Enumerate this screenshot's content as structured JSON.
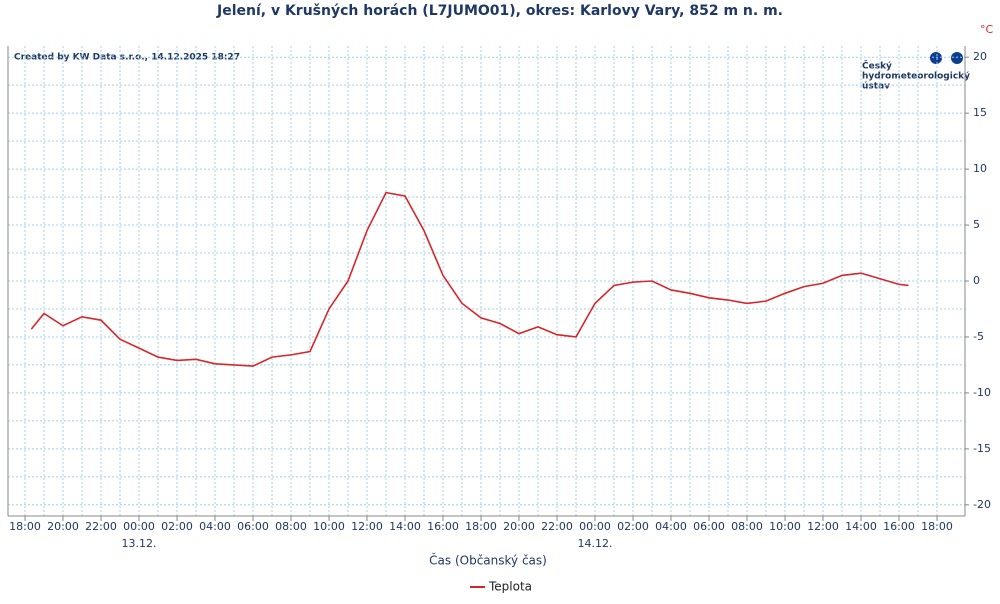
{
  "chart_data": {
    "type": "line",
    "title": "Jelení, v Krušných horách (L7JUMO01), okres: Karlovy Vary, 852 m n. m.",
    "created": "Created by KW Data s.r.o., 14.12.2025 18:27",
    "logo": [
      "Český",
      "hydrometeorologický",
      "ústav"
    ],
    "y_unit": "°C",
    "xlabel": "Čas (Občanský čas)",
    "x": [
      "18:20",
      "19:00",
      "20:00",
      "21:00",
      "22:00",
      "23:00",
      "00:00",
      "01:00",
      "02:00",
      "03:00",
      "04:00",
      "05:00",
      "06:00",
      "07:00",
      "08:00",
      "09:00",
      "10:00",
      "11:00",
      "12:00",
      "13:00",
      "14:00",
      "15:00",
      "16:00",
      "17:00",
      "18:00",
      "19:00",
      "20:00",
      "21:00",
      "22:00",
      "23:00",
      "00:00",
      "01:00",
      "02:00",
      "03:00",
      "04:00",
      "05:00",
      "06:00",
      "07:00",
      "08:00",
      "09:00",
      "10:00",
      "11:00",
      "12:00",
      "13:00",
      "14:00",
      "15:00",
      "16:00",
      "16:30"
    ],
    "series": [
      {
        "name": "Teplota",
        "color": "#d62728",
        "values": [
          -4.3,
          -2.9,
          -4.0,
          -3.2,
          -3.5,
          -5.2,
          -6.0,
          -6.8,
          -7.1,
          -7.0,
          -7.4,
          -7.5,
          -7.6,
          -6.8,
          -6.6,
          -6.3,
          -2.5,
          0.0,
          4.5,
          7.9,
          7.6,
          4.5,
          0.5,
          -2.0,
          -3.3,
          -3.8,
          -4.7,
          -4.1,
          -4.8,
          -5.0,
          -2.0,
          -0.4,
          -0.1,
          0.0,
          -0.8,
          -1.1,
          -1.5,
          -1.7,
          -2.0,
          -1.8,
          -1.1,
          -0.5,
          -0.2,
          0.5,
          0.7,
          0.2,
          -0.3,
          -0.4
        ]
      }
    ],
    "xticks": [
      "18:00",
      "20:00",
      "22:00",
      "00:00",
      "02:00",
      "04:00",
      "06:00",
      "08:00",
      "10:00",
      "12:00",
      "14:00",
      "16:00",
      "18:00",
      "20:00",
      "22:00",
      "00:00",
      "02:00",
      "04:00",
      "06:00",
      "08:00",
      "10:00",
      "12:00",
      "14:00",
      "16:00",
      "18:00"
    ],
    "dates": [
      "13.12.",
      "14.12."
    ],
    "ylim": [
      -21,
      21
    ],
    "yticks": [
      20,
      15,
      10,
      5,
      0,
      -5,
      -10,
      -15,
      -20
    ],
    "grid": true
  }
}
